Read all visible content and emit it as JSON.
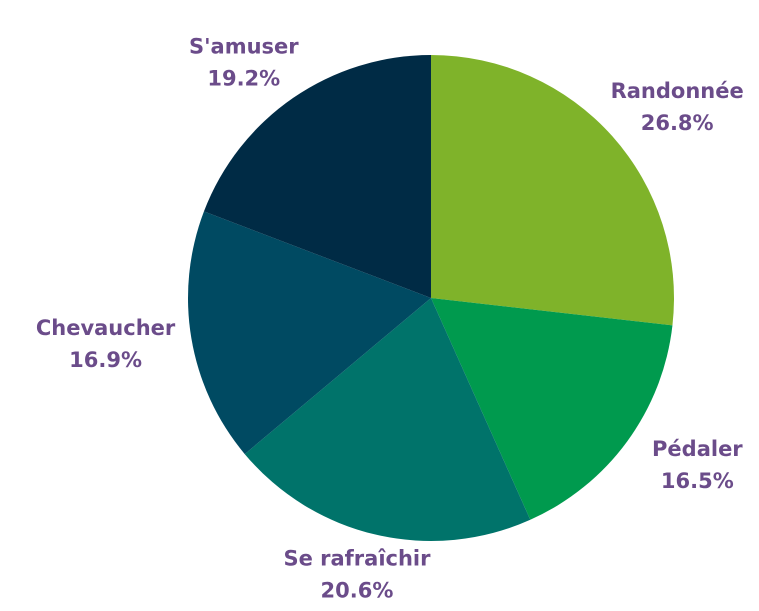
{
  "chart_data": {
    "type": "pie",
    "categories": [
      "Randonnée",
      "Pédaler",
      "Se rafraîchir",
      "Chevaucher",
      "S'amuser"
    ],
    "values": [
      26.8,
      16.5,
      20.6,
      16.9,
      19.2
    ],
    "value_labels": [
      "26.8%",
      "16.5%",
      "20.6%",
      "16.9%",
      "19.2%"
    ],
    "colors": [
      "#7fb32a",
      "#009a4e",
      "#00736a",
      "#004a62",
      "#002b45"
    ]
  }
}
